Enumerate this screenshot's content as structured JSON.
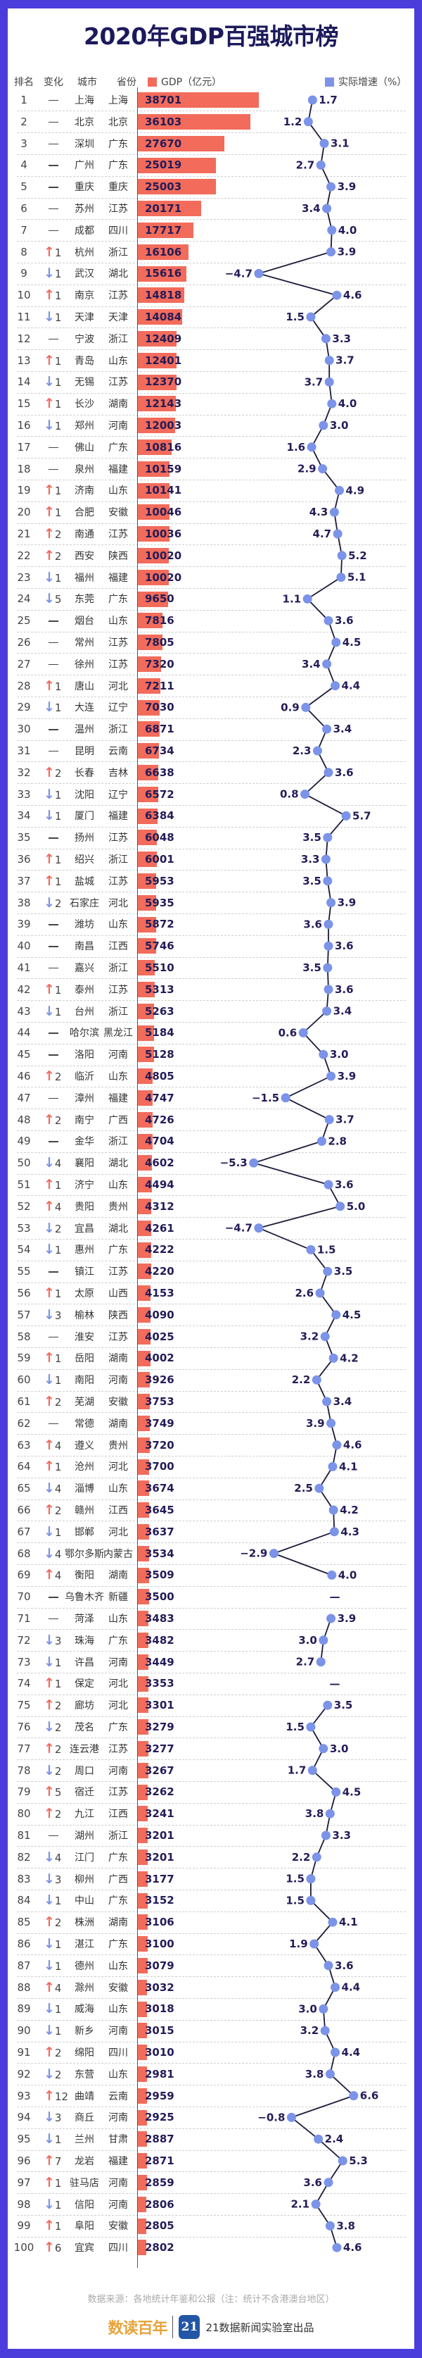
{
  "title": "2020年GDP百强城市榜",
  "headers": {
    "rank": "排名",
    "change": "变化",
    "city": "城市",
    "province": "省份",
    "gdp_legend": "GDP（亿元）",
    "growth_legend": "实际增速（%）"
  },
  "colors": {
    "frame": "#4b3ddc",
    "bar": "#f26b5b",
    "dot": "#7b93e8",
    "line": "#1b1b3a",
    "up": "#f26b5b",
    "down": "#7b93e8",
    "text": "#231c57"
  },
  "no_change_symbol": "—",
  "missing_growth_symbol": "—",
  "chart_data": {
    "type": "table",
    "series": [
      {
        "name": "GDP（亿元）",
        "type": "bar"
      },
      {
        "name": "实际增速（%）",
        "type": "line"
      }
    ],
    "columns": [
      "rank",
      "change",
      "city",
      "province",
      "gdp",
      "growth"
    ],
    "rows": [
      [
        1,
        "—",
        "上海",
        "上海",
        38701,
        1.7
      ],
      [
        2,
        "—",
        "北京",
        "北京",
        36103,
        1.2
      ],
      [
        3,
        "—",
        "深圳",
        "广东",
        27670,
        3.1
      ],
      [
        4,
        "—",
        "广州",
        "广东",
        25019,
        2.7
      ],
      [
        5,
        "—",
        "重庆",
        "重庆",
        25003,
        3.9
      ],
      [
        6,
        "—",
        "苏州",
        "江苏",
        20171,
        3.4
      ],
      [
        7,
        "—",
        "成都",
        "四川",
        17717,
        4.0
      ],
      [
        8,
        "↑1",
        "杭州",
        "浙江",
        16106,
        3.9
      ],
      [
        9,
        "↓1",
        "武汉",
        "湖北",
        15616,
        -4.7
      ],
      [
        10,
        "↑1",
        "南京",
        "江苏",
        14818,
        4.6
      ],
      [
        11,
        "↓1",
        "天津",
        "天津",
        14084,
        1.5
      ],
      [
        12,
        "—",
        "宁波",
        "浙江",
        12409,
        3.3
      ],
      [
        13,
        "↑1",
        "青岛",
        "山东",
        12401,
        3.7
      ],
      [
        14,
        "↓1",
        "无锡",
        "江苏",
        12370,
        3.7
      ],
      [
        15,
        "↑1",
        "长沙",
        "湖南",
        12143,
        4.0
      ],
      [
        16,
        "↓1",
        "郑州",
        "河南",
        12003,
        3.0
      ],
      [
        17,
        "—",
        "佛山",
        "广东",
        10816,
        1.6
      ],
      [
        18,
        "—",
        "泉州",
        "福建",
        10159,
        2.9
      ],
      [
        19,
        "↑1",
        "济南",
        "山东",
        10141,
        4.9
      ],
      [
        20,
        "↑1",
        "合肥",
        "安徽",
        10046,
        4.3
      ],
      [
        21,
        "↑2",
        "南通",
        "江苏",
        10036,
        4.7
      ],
      [
        22,
        "↑2",
        "西安",
        "陕西",
        10020,
        5.2
      ],
      [
        23,
        "↓1",
        "福州",
        "福建",
        10020,
        5.1
      ],
      [
        24,
        "↓5",
        "东莞",
        "广东",
        9650,
        1.1
      ],
      [
        25,
        "—",
        "烟台",
        "山东",
        7816,
        3.6
      ],
      [
        26,
        "—",
        "常州",
        "江苏",
        7805,
        4.5
      ],
      [
        27,
        "—",
        "徐州",
        "江苏",
        7320,
        3.4
      ],
      [
        28,
        "↑1",
        "唐山",
        "河北",
        7211,
        4.4
      ],
      [
        29,
        "↓1",
        "大连",
        "辽宁",
        7030,
        0.9
      ],
      [
        30,
        "—",
        "温州",
        "浙江",
        6871,
        3.4
      ],
      [
        31,
        "—",
        "昆明",
        "云南",
        6734,
        2.3
      ],
      [
        32,
        "↑2",
        "长春",
        "吉林",
        6638,
        3.6
      ],
      [
        33,
        "↓1",
        "沈阳",
        "辽宁",
        6572,
        0.8
      ],
      [
        34,
        "↓1",
        "厦门",
        "福建",
        6384,
        5.7
      ],
      [
        35,
        "—",
        "扬州",
        "江苏",
        6048,
        3.5
      ],
      [
        36,
        "↑1",
        "绍兴",
        "浙江",
        6001,
        3.3
      ],
      [
        37,
        "↑1",
        "盐城",
        "江苏",
        5953,
        3.5
      ],
      [
        38,
        "↓2",
        "石家庄",
        "河北",
        5935,
        3.9
      ],
      [
        39,
        "—",
        "潍坊",
        "山东",
        5872,
        3.6
      ],
      [
        40,
        "—",
        "南昌",
        "江西",
        5746,
        3.6
      ],
      [
        41,
        "—",
        "嘉兴",
        "浙江",
        5510,
        3.5
      ],
      [
        42,
        "↑1",
        "泰州",
        "江苏",
        5313,
        3.6
      ],
      [
        43,
        "↓1",
        "台州",
        "浙江",
        5263,
        3.4
      ],
      [
        44,
        "—",
        "哈尔滨",
        "黑龙江",
        5184,
        0.6
      ],
      [
        45,
        "—",
        "洛阳",
        "河南",
        5128,
        3.0
      ],
      [
        46,
        "↑2",
        "临沂",
        "山东",
        4805,
        3.9
      ],
      [
        47,
        "—",
        "漳州",
        "福建",
        4747,
        -1.5
      ],
      [
        48,
        "↑2",
        "南宁",
        "广西",
        4726,
        3.7
      ],
      [
        49,
        "—",
        "金华",
        "浙江",
        4704,
        2.8
      ],
      [
        50,
        "↓4",
        "襄阳",
        "湖北",
        4602,
        -5.3
      ],
      [
        51,
        "↑1",
        "济宁",
        "山东",
        4494,
        3.6
      ],
      [
        52,
        "↑4",
        "贵阳",
        "贵州",
        4312,
        5.0
      ],
      [
        53,
        "↓2",
        "宜昌",
        "湖北",
        4261,
        -4.7
      ],
      [
        54,
        "↓1",
        "惠州",
        "广东",
        4222,
        1.5
      ],
      [
        55,
        "—",
        "镇江",
        "江苏",
        4220,
        3.5
      ],
      [
        56,
        "↑1",
        "太原",
        "山西",
        4153,
        2.6
      ],
      [
        57,
        "↓3",
        "榆林",
        "陕西",
        4090,
        4.5
      ],
      [
        58,
        "—",
        "淮安",
        "江苏",
        4025,
        3.2
      ],
      [
        59,
        "↑1",
        "岳阳",
        "湖南",
        4002,
        4.2
      ],
      [
        60,
        "↓1",
        "南阳",
        "河南",
        3926,
        2.2
      ],
      [
        61,
        "↑2",
        "芜湖",
        "安徽",
        3753,
        3.4
      ],
      [
        62,
        "—",
        "常德",
        "湖南",
        3749,
        3.9
      ],
      [
        63,
        "↑4",
        "遵义",
        "贵州",
        3720,
        4.6
      ],
      [
        64,
        "↑1",
        "沧州",
        "河北",
        3700,
        4.1
      ],
      [
        65,
        "↓4",
        "淄博",
        "山东",
        3674,
        2.5
      ],
      [
        66,
        "↑2",
        "赣州",
        "江西",
        3645,
        4.2
      ],
      [
        67,
        "↓1",
        "邯郸",
        "河北",
        3637,
        4.3
      ],
      [
        68,
        "↓4",
        "鄂尔多斯",
        "内蒙古",
        3534,
        -2.9
      ],
      [
        69,
        "↑4",
        "衡阳",
        "湖南",
        3509,
        4.0
      ],
      [
        70,
        "—",
        "乌鲁木齐",
        "新疆",
        3500,
        null
      ],
      [
        71,
        "—",
        "菏泽",
        "山东",
        3483,
        3.9
      ],
      [
        72,
        "↓3",
        "珠海",
        "广东",
        3482,
        3.0
      ],
      [
        73,
        "↓1",
        "许昌",
        "河南",
        3449,
        2.7
      ],
      [
        74,
        "↑1",
        "保定",
        "河北",
        3353,
        null
      ],
      [
        75,
        "↑2",
        "廊坊",
        "河北",
        3301,
        3.5
      ],
      [
        76,
        "↓2",
        "茂名",
        "广东",
        3279,
        1.5
      ],
      [
        77,
        "↑2",
        "连云港",
        "江苏",
        3277,
        3.0
      ],
      [
        78,
        "↓2",
        "周口",
        "河南",
        3267,
        1.7
      ],
      [
        79,
        "↑5",
        "宿迁",
        "江苏",
        3262,
        4.5
      ],
      [
        80,
        "↑2",
        "九江",
        "江西",
        3241,
        3.8
      ],
      [
        81,
        "—",
        "湖州",
        "浙江",
        3201,
        3.3
      ],
      [
        82,
        "↓4",
        "江门",
        "广东",
        3201,
        2.2
      ],
      [
        83,
        "↓3",
        "柳州",
        "广西",
        3177,
        1.5
      ],
      [
        84,
        "↓1",
        "中山",
        "广东",
        3152,
        1.5
      ],
      [
        85,
        "↑2",
        "株洲",
        "湖南",
        3106,
        4.1
      ],
      [
        86,
        "↓1",
        "湛江",
        "广东",
        3100,
        1.9
      ],
      [
        87,
        "↓1",
        "德州",
        "山东",
        3079,
        3.6
      ],
      [
        88,
        "↑4",
        "滁州",
        "安徽",
        3032,
        4.4
      ],
      [
        89,
        "↓1",
        "威海",
        "山东",
        3018,
        3.0
      ],
      [
        90,
        "↓1",
        "新乡",
        "河南",
        3015,
        3.2
      ],
      [
        91,
        "↑2",
        "绵阳",
        "四川",
        3010,
        4.4
      ],
      [
        92,
        "↓2",
        "东营",
        "山东",
        2981,
        3.8
      ],
      [
        93,
        "↑12",
        "曲靖",
        "云南",
        2959,
        6.6
      ],
      [
        94,
        "↓3",
        "商丘",
        "河南",
        2925,
        -0.8
      ],
      [
        95,
        "↓1",
        "兰州",
        "甘肃",
        2887,
        2.4
      ],
      [
        96,
        "↑7",
        "龙岩",
        "福建",
        2871,
        5.3
      ],
      [
        97,
        "↑1",
        "驻马店",
        "河南",
        2859,
        3.6
      ],
      [
        98,
        "↓1",
        "信阳",
        "河南",
        2806,
        2.1
      ],
      [
        99,
        "↑1",
        "阜阳",
        "安徽",
        2805,
        3.8
      ],
      [
        100,
        "↑6",
        "宜宾",
        "四川",
        2802,
        4.6
      ]
    ]
  },
  "footer": {
    "source": "数据来源：各地统计年鉴和公报（注：统计不含港澳台地区）",
    "logo_text": "数读百年",
    "badge_text": "21",
    "credit": "21数据新闻实验室出品"
  }
}
